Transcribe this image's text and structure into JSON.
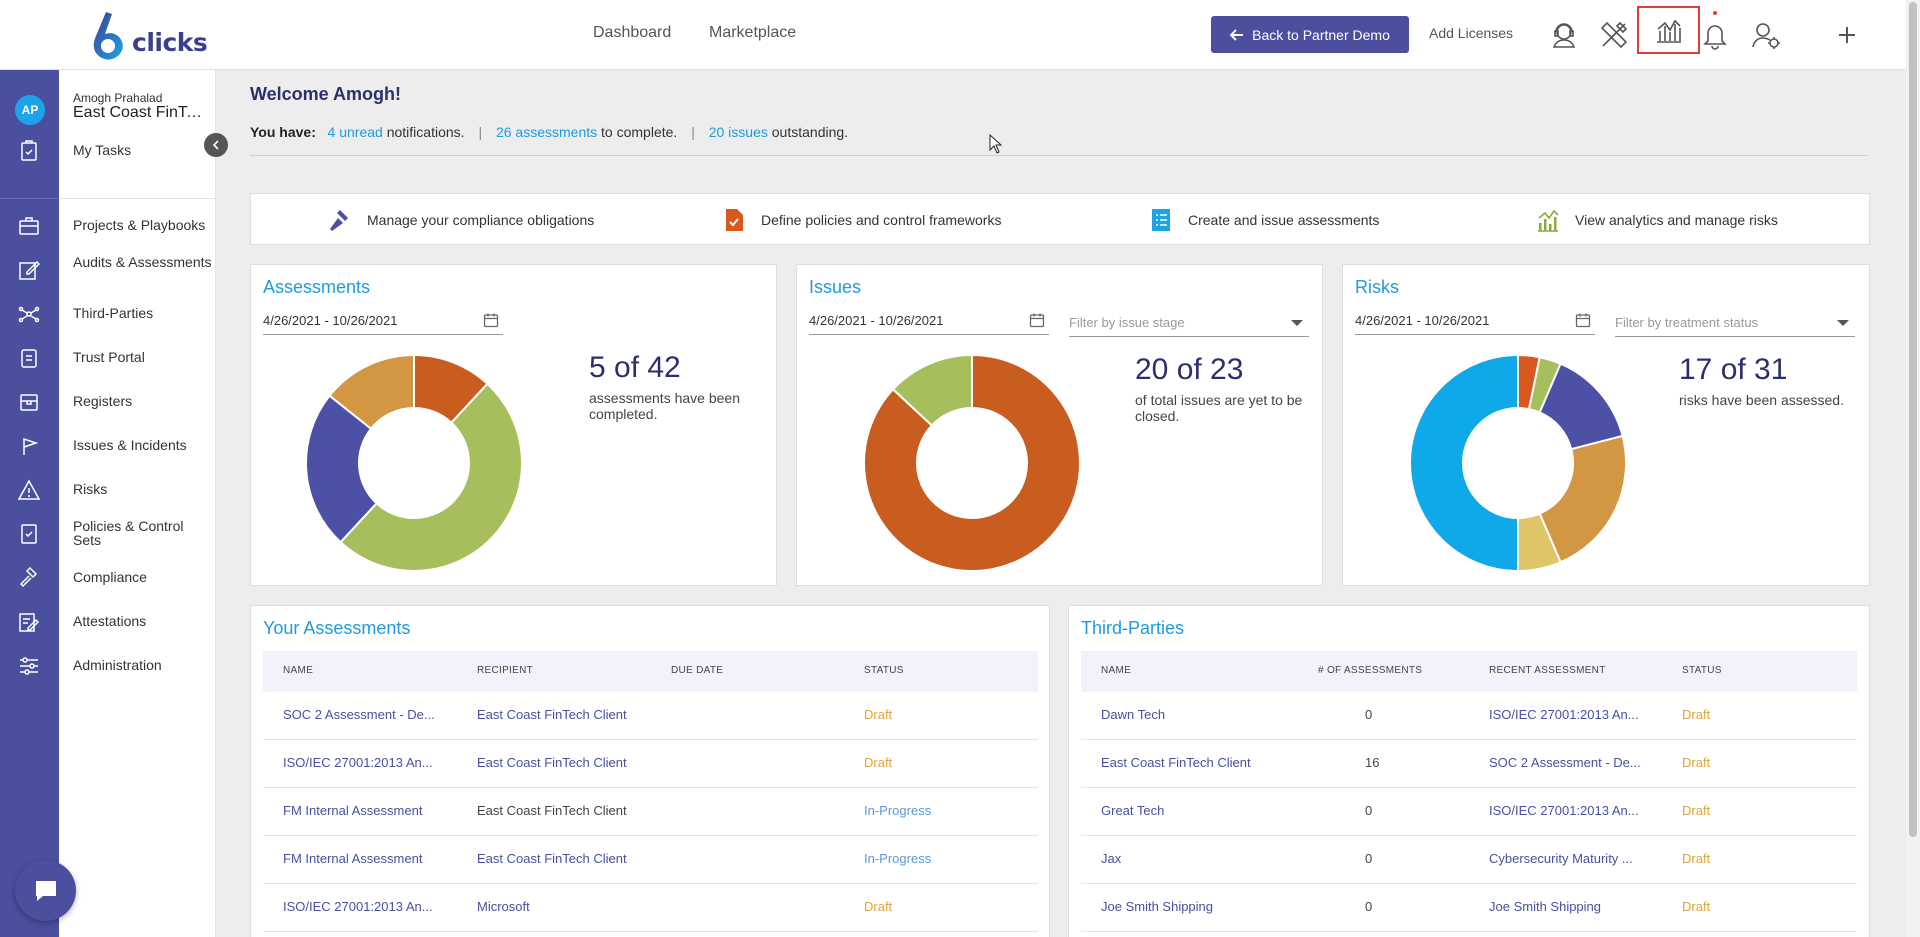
{
  "brand": {
    "logo_text": "clicks"
  },
  "topnav": {
    "dashboard": "Dashboard",
    "marketplace": "Marketplace"
  },
  "top_actions": {
    "back_button": "Back to Partner Demo",
    "add_licenses": "Add Licenses"
  },
  "user": {
    "initials": "AP",
    "name": "Amogh Prahalad",
    "org": "East Coast FinTech Client"
  },
  "nav": {
    "my_tasks": "My Tasks",
    "items": [
      "Projects & Playbooks",
      "Audits & Assessments",
      "Third-Parties",
      "Trust Portal",
      "Registers",
      "Issues & Incidents",
      "Risks",
      "Policies & Control Sets",
      "Compliance",
      "Attestations",
      "Administration"
    ]
  },
  "welcome": {
    "title": "Welcome Amogh!",
    "you_have": "You have:",
    "unread_link": "4 unread",
    "unread_suffix": "notifications.",
    "assess_link": "26 assessments",
    "assess_suffix": "to complete.",
    "issues_link": "20 issues",
    "issues_suffix": "outstanding.",
    "separator": "|"
  },
  "quick_actions": [
    "Manage your compliance obligations",
    "Define policies and control frameworks",
    "Create and issue assessments",
    "View analytics and manage risks"
  ],
  "colors": {
    "accent": "#1e9be0",
    "brand": "#4a4f9e",
    "draft": "#e0a53a",
    "in_progress": "#5a9bd4"
  },
  "chart_data": [
    {
      "type": "pie",
      "title": "Assessments",
      "date_range": "4/26/2021 - 10/26/2021",
      "stat": "5 of 42",
      "stat_desc": "assessments have been completed.",
      "slices": [
        {
          "value": 5,
          "color": "#c95d1f"
        },
        {
          "value": 21,
          "color": "#a6bf5c"
        },
        {
          "value": 10,
          "color": "#4c51a5"
        },
        {
          "value": 6,
          "color": "#d39642"
        }
      ]
    },
    {
      "type": "pie",
      "title": "Issues",
      "date_range": "4/26/2021 - 10/26/2021",
      "filter_placeholder": "Filter by issue stage",
      "stat": "20 of 23",
      "stat_desc": "of total issues are yet to be closed.",
      "slices": [
        {
          "value": 20,
          "color": "#c95d1f"
        },
        {
          "value": 3,
          "color": "#a6bf5c"
        }
      ]
    },
    {
      "type": "pie",
      "title": "Risks",
      "date_range": "4/26/2021 - 10/26/2021",
      "filter_placeholder": "Filter by treatment status",
      "stat": "17 of 31",
      "stat_desc": "risks have been assessed.",
      "slices": [
        {
          "value": 1,
          "color": "#d9581e"
        },
        {
          "value": 1,
          "color": "#a6bf5c"
        },
        {
          "value": 4.5,
          "color": "#4c51a5"
        },
        {
          "value": 7,
          "color": "#d39642"
        },
        {
          "value": 2,
          "color": "#e0c46a"
        },
        {
          "value": 15.5,
          "color": "#0fa9ea"
        }
      ]
    }
  ],
  "your_assessments": {
    "title": "Your Assessments",
    "headers": [
      "NAME",
      "RECIPIENT",
      "DUE DATE",
      "STATUS"
    ],
    "rows": [
      {
        "name": "SOC 2 Assessment - De...",
        "recipient": "East Coast FinTech Client",
        "due": "",
        "status": "Draft"
      },
      {
        "name": "ISO/IEC 27001:2013 An...",
        "recipient": "East Coast FinTech Client",
        "due": "",
        "status": "Draft"
      },
      {
        "name": "FM Internal Assessment",
        "recipient": "East Coast FinTech Client",
        "due": "",
        "status": "In-Progress"
      },
      {
        "name": "FM Internal Assessment",
        "recipient": "East Coast FinTech Client",
        "due": "",
        "status": "In-Progress"
      },
      {
        "name": "ISO/IEC 27001:2013 An...",
        "recipient": "Microsoft",
        "due": "",
        "status": "Draft"
      }
    ]
  },
  "third_parties": {
    "title": "Third-Parties",
    "headers": [
      "NAME",
      "# OF ASSESSMENTS",
      "RECENT ASSESSMENT",
      "STATUS"
    ],
    "rows": [
      {
        "name": "Dawn Tech",
        "count": "0",
        "recent": "ISO/IEC 27001:2013 An...",
        "status": "Draft"
      },
      {
        "name": "East Coast FinTech Client",
        "count": "16",
        "recent": "SOC 2 Assessment - De...",
        "status": "Draft"
      },
      {
        "name": "Great Tech",
        "count": "0",
        "recent": "ISO/IEC 27001:2013 An...",
        "status": "Draft"
      },
      {
        "name": "Jax",
        "count": "0",
        "recent": "Cybersecurity Maturity ...",
        "status": "Draft"
      },
      {
        "name": "Joe Smith Shipping",
        "count": "0",
        "recent": "Joe Smith Shipping",
        "status": "Draft"
      }
    ]
  }
}
